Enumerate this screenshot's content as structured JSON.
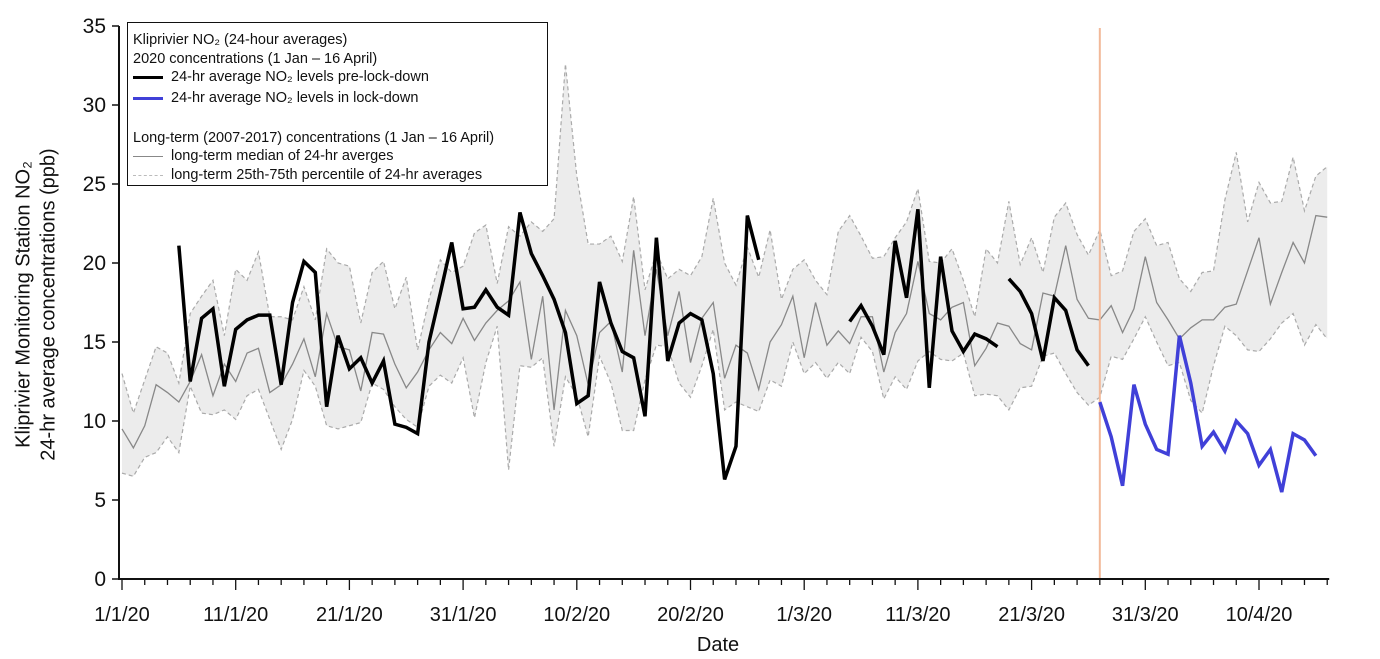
{
  "chart_data": {
    "type": "line",
    "xlabel": "Date",
    "ylabel_line1": "Kliprivier Monitoring Station NO₂",
    "ylabel_line2": "24-hr average concentrations (ppb)",
    "ylim": [
      0,
      35
    ],
    "y_ticks": [
      "0",
      "5",
      "10",
      "15",
      "20",
      "25",
      "30",
      "35"
    ],
    "x_unit": "days since 1/1/20",
    "xlim": [
      0,
      106
    ],
    "x_tick_labels": [
      "1/1/20",
      "11/1/20",
      "21/1/20",
      "31/1/20",
      "10/2/20",
      "20/2/20",
      "1/3/20",
      "11/3/20",
      "21/3/20",
      "31/3/20",
      "10/4/20"
    ],
    "lockdown_day": 86,
    "legend": {
      "title": "Kliprivier NO₂ (24-hour averages)",
      "group1": "2020 concentrations (1 Jan – 16 April)",
      "pre": "24-hr average NO₂ levels pre-lock-down",
      "lock": "24-hr average NO₂ levels in lock-down",
      "group2": "Long-term (2007-2017) concentrations (1 Jan – 16 April)",
      "median": "long-term median of 24-hr averges",
      "band": "long-term 25th-75th percentile of 24-hr averages"
    },
    "colors": {
      "pre": "#000000",
      "lock": "#4040d8",
      "median": "#888888",
      "band_fill": "#ececec",
      "band_edge": "#aaaaaa",
      "lockdown_line": "#f2b999"
    },
    "long_term_median": [
      9.5,
      8.3,
      9.7,
      12.3,
      11.8,
      11.2,
      12.5,
      14.2,
      11.6,
      13.6,
      12.5,
      14.3,
      14.6,
      11.8,
      12.3,
      13.6,
      15.2,
      12.8,
      16.8,
      14.7,
      14.5,
      11.9,
      15.6,
      15.5,
      13.6,
      12.1,
      13.1,
      14.5,
      15.6,
      14.9,
      16.5,
      15.1,
      16.2,
      17.0,
      17.6,
      18.8,
      13.9,
      17.9,
      10.7,
      17.0,
      15.4,
      12.3,
      15.6,
      16.3,
      13.1,
      20.8,
      15.4,
      19.6,
      15.4,
      18.2,
      13.7,
      16.5,
      17.5,
      12.7,
      14.8,
      14.3,
      12.0,
      15.0,
      16.1,
      17.9,
      14.0,
      17.5,
      14.8,
      15.7,
      14.9,
      16.6,
      16.6,
      13.1,
      15.6,
      16.8,
      20.1,
      16.8,
      16.4,
      17.2,
      17.5,
      13.5,
      14.6,
      16.2,
      16.0,
      14.9,
      14.5,
      18.1,
      17.9,
      21.1,
      17.7,
      16.5,
      16.4,
      17.3,
      15.6,
      17.1,
      20.4,
      17.5,
      16.4,
      15.2,
      15.9,
      16.4,
      16.4,
      17.2,
      17.4,
      19.5,
      21.6,
      17.4,
      19.4,
      21.3,
      20.0,
      23.0,
      22.9
    ],
    "long_term_p75": [
      13.0,
      10.5,
      12.6,
      14.7,
      14.3,
      12.4,
      16.8,
      17.9,
      18.9,
      15.4,
      19.6,
      18.9,
      20.7,
      16.6,
      16.6,
      16.4,
      18.5,
      16.4,
      20.9,
      20.0,
      19.8,
      16.2,
      19.4,
      20.1,
      17.1,
      19.1,
      14.5,
      17.7,
      20.2,
      19.4,
      19.8,
      21.9,
      22.4,
      18.7,
      22.3,
      21.7,
      22.6,
      22.0,
      22.8,
      32.6,
      25.5,
      21.2,
      21.2,
      21.7,
      20.1,
      24.2,
      18.3,
      20.7,
      19.0,
      19.6,
      19.2,
      20.4,
      24.1,
      20.0,
      18.6,
      21.0,
      19.1,
      22.1,
      17.7,
      19.6,
      20.2,
      18.9,
      18.0,
      22.0,
      23.0,
      21.7,
      20.3,
      20.4,
      21.6,
      22.6,
      24.7,
      20.1,
      20.0,
      20.9,
      18.9,
      16.6,
      20.9,
      20.0,
      23.9,
      19.9,
      21.6,
      19.4,
      22.9,
      23.8,
      21.8,
      20.5,
      22.1,
      19.2,
      19.5,
      22.0,
      22.8,
      21.1,
      21.3,
      19.0,
      18.2,
      19.4,
      19.5,
      24.0,
      27.0,
      22.6,
      25.1,
      23.8,
      23.9,
      26.7,
      23.3,
      25.5,
      26.1
    ],
    "long_term_p25": [
      6.7,
      6.5,
      7.7,
      8.0,
      9.0,
      8.0,
      12.2,
      10.5,
      10.4,
      10.7,
      10.1,
      11.6,
      12.0,
      10.1,
      8.2,
      10.1,
      13.2,
      12.2,
      9.7,
      9.5,
      9.7,
      9.9,
      12.4,
      12.0,
      10.9,
      10.1,
      9.6,
      12.2,
      12.9,
      12.4,
      14.0,
      10.2,
      13.7,
      16.0,
      6.9,
      13.5,
      13.4,
      14.0,
      8.4,
      12.8,
      11.6,
      9.0,
      14.1,
      12.4,
      9.4,
      9.4,
      12.6,
      14.8,
      14.7,
      12.4,
      11.5,
      13.5,
      15.8,
      10.7,
      11.2,
      10.9,
      10.6,
      12.6,
      12.2,
      15.0,
      13.0,
      13.7,
      12.7,
      13.7,
      13.0,
      15.3,
      14.4,
      11.4,
      12.8,
      12.0,
      13.8,
      14.4,
      13.9,
      13.8,
      14.3,
      11.6,
      11.7,
      11.6,
      10.7,
      12.1,
      12.2,
      14.1,
      14.3,
      13.0,
      11.8,
      11.0,
      11.5,
      14.1,
      13.9,
      15.2,
      16.6,
      15.0,
      13.5,
      13.7,
      11.3,
      10.5,
      13.5,
      16.0,
      15.4,
      14.5,
      14.4,
      15.2,
      16.2,
      16.8,
      14.8,
      16.1,
      15.2
    ],
    "pre_lockdown_segments": [
      {
        "start_day": 5,
        "values": [
          21.1,
          12.5,
          16.5,
          17.1,
          12.2,
          15.8,
          16.4,
          16.7,
          16.7,
          12.3,
          17.5,
          20.1,
          19.4,
          10.9,
          15.4,
          13.3,
          14.0,
          12.4,
          13.8,
          9.8,
          9.6,
          9.2,
          15.0,
          18.1,
          21.3,
          17.1,
          17.2,
          18.3,
          17.2,
          16.7,
          23.2,
          20.6,
          19.2,
          17.7,
          15.6,
          11.1,
          11.6,
          18.8,
          16.2,
          14.4,
          14.0,
          10.3,
          21.6,
          13.8,
          16.2,
          16.8,
          16.4,
          13.0,
          6.3,
          8.4,
          23.0,
          20.2
        ]
      },
      {
        "start_day": 64,
        "values": [
          16.3,
          17.3,
          16.0,
          14.2,
          21.4,
          17.8,
          23.4,
          12.1,
          20.4,
          15.7,
          14.4,
          15.5,
          15.2,
          14.7
        ]
      },
      {
        "start_day": 78,
        "values": [
          19.0,
          18.2,
          16.8,
          13.8,
          17.8,
          17.0,
          14.5,
          13.5
        ]
      }
    ],
    "lockdown_segment": {
      "start_day": 86,
      "values": [
        11.2,
        9.0,
        5.9,
        12.3,
        9.8,
        8.2,
        7.9,
        15.4,
        12.4,
        8.4,
        9.3,
        8.1,
        10.0,
        9.2,
        7.2,
        8.2,
        5.5,
        9.2,
        8.8,
        7.8
      ]
    }
  }
}
